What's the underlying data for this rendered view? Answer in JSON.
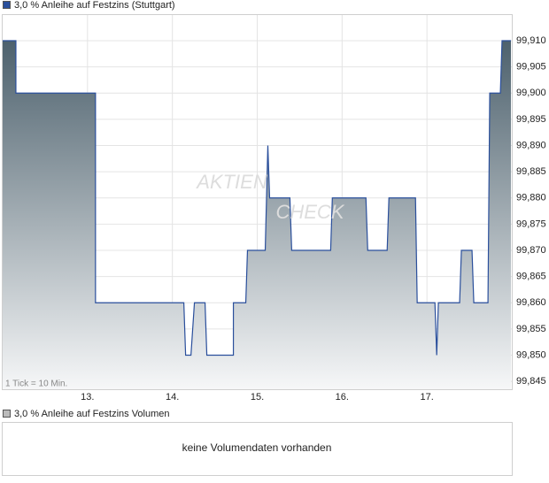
{
  "chart_data": {
    "type": "line",
    "note": "1 Tick = 10 Min.",
    "watermark": [
      "AKTIEN",
      "CHECK"
    ],
    "x": [
      12.0,
      12.156,
      12.156,
      13.094,
      13.094,
      14.135,
      14.156,
      14.219,
      14.26,
      14.385,
      14.406,
      14.719,
      14.719,
      14.865,
      14.885,
      15.094,
      15.125,
      15.146,
      15.385,
      15.406,
      15.865,
      15.885,
      16.281,
      16.302,
      16.531,
      16.552,
      16.865,
      16.885,
      17.094,
      17.115,
      17.135,
      17.385,
      17.406,
      17.531,
      17.552,
      17.719,
      17.74,
      17.865,
      17.885,
      17.99
    ],
    "series": [
      {
        "name": "3,0 % Anleihe auf Festzins (Stuttgart)",
        "color": "#2a4f9c",
        "values": [
          99.91,
          99.91,
          99.9,
          99.9,
          99.86,
          99.86,
          99.85,
          99.85,
          99.86,
          99.86,
          99.85,
          99.85,
          99.86,
          99.86,
          99.87,
          99.87,
          99.89,
          99.88,
          99.88,
          99.87,
          99.87,
          99.88,
          99.88,
          99.87,
          99.87,
          99.88,
          99.88,
          99.86,
          99.86,
          99.85,
          99.86,
          99.86,
          99.87,
          99.87,
          99.86,
          99.86,
          99.9,
          99.9,
          99.91,
          99.91
        ]
      }
    ],
    "xlim": [
      12.0,
      18.0
    ],
    "ylim": [
      99.8435,
      99.9149
    ],
    "xticks": [
      {
        "value": 13,
        "label": "13."
      },
      {
        "value": 14,
        "label": "14."
      },
      {
        "value": 15,
        "label": "15."
      },
      {
        "value": 16,
        "label": "16."
      },
      {
        "value": 17,
        "label": "17."
      }
    ],
    "yticks": [
      {
        "value": 99.845,
        "label": "99,845"
      },
      {
        "value": 99.85,
        "label": "99,850"
      },
      {
        "value": 99.855,
        "label": "99,855"
      },
      {
        "value": 99.86,
        "label": "99,860"
      },
      {
        "value": 99.865,
        "label": "99,865"
      },
      {
        "value": 99.87,
        "label": "99,870"
      },
      {
        "value": 99.875,
        "label": "99,875"
      },
      {
        "value": 99.88,
        "label": "99,880"
      },
      {
        "value": 99.885,
        "label": "99,885"
      },
      {
        "value": 99.89,
        "label": "99,890"
      },
      {
        "value": 99.895,
        "label": "99,895"
      },
      {
        "value": 99.9,
        "label": "99,900"
      },
      {
        "value": 99.905,
        "label": "99,905"
      },
      {
        "value": 99.91,
        "label": "99,910"
      }
    ],
    "grid": true
  },
  "volume_panel": {
    "title": "3,0 % Anleihe auf Festzins Volumen",
    "color": "#bbbbbb",
    "message": "keine Volumendaten vorhanden"
  }
}
